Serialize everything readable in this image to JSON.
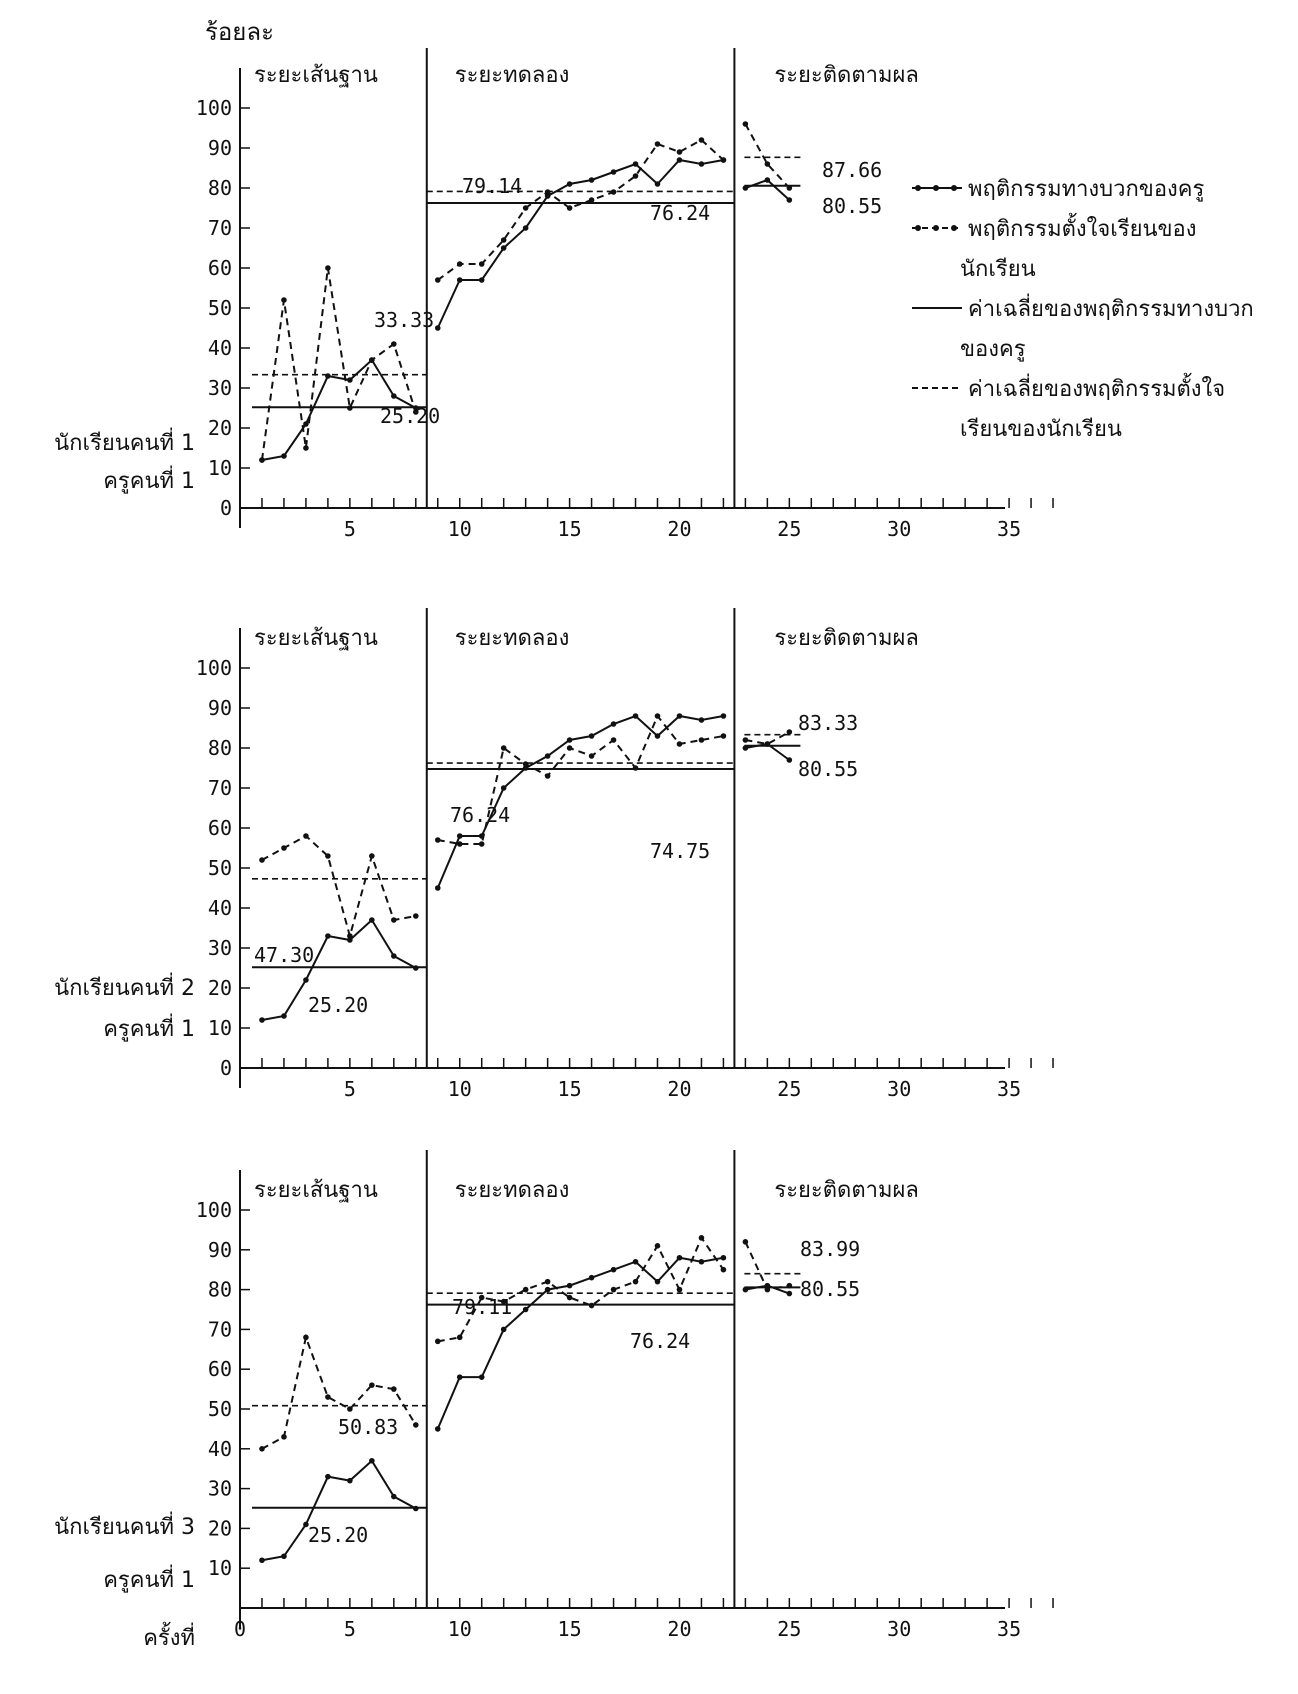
{
  "y_unit_label": "ร้อยละ",
  "chart_data": [
    {
      "type": "line",
      "row_labels": [
        "นักเรียนคนที่ 1",
        "ครูคนที่ 1"
      ],
      "phases": [
        "ระยะเส้นฐาน",
        "ระยะทดลอง",
        "ระยะติดตามผล"
      ],
      "phase_breaks": [
        8.5,
        22.5
      ],
      "xlim": [
        0,
        38
      ],
      "ylim": [
        0,
        100
      ],
      "x_ticks": [
        5,
        10,
        15,
        20,
        25,
        30,
        35
      ],
      "x_tick_labels": [
        "5",
        "10",
        "15",
        "20",
        "25",
        "30",
        "35"
      ],
      "y_ticks": [
        0,
        10,
        20,
        30,
        40,
        50,
        60,
        70,
        80,
        90,
        100
      ],
      "y_tick_labels": [
        "0",
        "10",
        "20",
        "30",
        "40",
        "50",
        "60",
        "70",
        "80",
        "90",
        "100"
      ],
      "series": [
        {
          "name": "พฤติกรรมทางบวกของครู",
          "style": "solid",
          "x": [
            1,
            2,
            3,
            4,
            5,
            6,
            7,
            8,
            9,
            10,
            11,
            12,
            13,
            14,
            15,
            16,
            17,
            18,
            19,
            20,
            21,
            22,
            23,
            24,
            25
          ],
          "y": [
            12,
            13,
            21,
            33,
            32,
            37,
            28,
            25,
            45,
            57,
            57,
            65,
            70,
            78,
            81,
            82,
            84,
            86,
            81,
            87,
            86,
            87,
            80,
            82,
            77
          ]
        },
        {
          "name": "พฤติกรรมตั้งใจเรียนของนักเรียน",
          "style": "dashed",
          "x": [
            1,
            2,
            3,
            4,
            5,
            6,
            7,
            8,
            9,
            10,
            11,
            12,
            13,
            14,
            15,
            16,
            17,
            18,
            19,
            20,
            21,
            22,
            23,
            24,
            25
          ],
          "y": [
            12,
            52,
            15,
            60,
            25,
            37,
            41,
            24,
            57,
            61,
            61,
            67,
            75,
            79,
            75,
            77,
            79,
            83,
            91,
            89,
            92,
            87,
            96,
            86,
            80
          ]
        }
      ],
      "phase_means": [
        {
          "series": "teacher",
          "phase": 0,
          "value": 25.2,
          "label": "25.20"
        },
        {
          "series": "student",
          "phase": 0,
          "value": 33.33,
          "label": "33.33"
        },
        {
          "series": "teacher",
          "phase": 1,
          "value": 76.24,
          "label": "76.24"
        },
        {
          "series": "student",
          "phase": 1,
          "value": 79.14,
          "label": "79.14"
        },
        {
          "series": "teacher",
          "phase": 2,
          "value": 80.55,
          "label": "80.55"
        },
        {
          "series": "student",
          "phase": 2,
          "value": 87.66,
          "label": "87.66"
        }
      ]
    },
    {
      "type": "line",
      "row_labels": [
        "นักเรียนคนที่ 2",
        "ครูคนที่ 1"
      ],
      "phases": [
        "ระยะเส้นฐาน",
        "ระยะทดลอง",
        "ระยะติดตามผล"
      ],
      "phase_breaks": [
        8.5,
        22.5
      ],
      "xlim": [
        0,
        38
      ],
      "ylim": [
        0,
        100
      ],
      "x_ticks": [
        5,
        10,
        15,
        20,
        25,
        30,
        35
      ],
      "x_tick_labels": [
        "5",
        "10",
        "15",
        "20",
        "25",
        "30",
        "35"
      ],
      "y_ticks": [
        0,
        10,
        20,
        30,
        40,
        50,
        60,
        70,
        80,
        90,
        100
      ],
      "y_tick_labels": [
        "0",
        "10",
        "20",
        "30",
        "40",
        "50",
        "60",
        "70",
        "80",
        "90",
        "100"
      ],
      "series": [
        {
          "name": "พฤติกรรมทางบวกของครู",
          "style": "solid",
          "x": [
            1,
            2,
            3,
            4,
            5,
            6,
            7,
            8,
            9,
            10,
            11,
            12,
            13,
            14,
            15,
            16,
            17,
            18,
            19,
            20,
            21,
            22,
            23,
            24,
            25
          ],
          "y": [
            12,
            13,
            22,
            33,
            32,
            37,
            28,
            25,
            45,
            58,
            58,
            70,
            75,
            78,
            82,
            83,
            86,
            88,
            83,
            88,
            87,
            88,
            80,
            81,
            77
          ]
        },
        {
          "name": "พฤติกรรมตั้งใจเรียนของนักเรียน",
          "style": "dashed",
          "x": [
            1,
            2,
            3,
            4,
            5,
            6,
            7,
            8,
            9,
            10,
            11,
            12,
            13,
            14,
            15,
            16,
            17,
            18,
            19,
            20,
            21,
            22,
            23,
            24,
            25
          ],
          "y": [
            52,
            55,
            58,
            53,
            33,
            53,
            37,
            38,
            57,
            56,
            56,
            80,
            76,
            73,
            80,
            78,
            82,
            75,
            88,
            81,
            82,
            83,
            82,
            81,
            84
          ]
        }
      ],
      "phase_means": [
        {
          "series": "teacher",
          "phase": 0,
          "value": 25.2,
          "label": "25.20"
        },
        {
          "series": "student",
          "phase": 0,
          "value": 47.3,
          "label": "47.30"
        },
        {
          "series": "teacher",
          "phase": 1,
          "value": 74.75,
          "label": "74.75"
        },
        {
          "series": "student",
          "phase": 1,
          "value": 76.24,
          "label": "76.24"
        },
        {
          "series": "teacher",
          "phase": 2,
          "value": 80.55,
          "label": "80.55"
        },
        {
          "series": "student",
          "phase": 2,
          "value": 83.33,
          "label": "83.33"
        }
      ]
    },
    {
      "type": "line",
      "row_labels": [
        "นักเรียนคนที่ 3",
        "ครูคนที่ 1",
        "ครั้งที่"
      ],
      "phases": [
        "ระยะเส้นฐาน",
        "ระยะทดลอง",
        "ระยะติดตามผล"
      ],
      "phase_breaks": [
        8.5,
        22.5
      ],
      "xlim": [
        0,
        38
      ],
      "ylim": [
        0,
        100
      ],
      "x_ticks": [
        0,
        5,
        10,
        15,
        20,
        25,
        30,
        35
      ],
      "x_tick_labels": [
        "0",
        "5",
        "10",
        "15",
        "20",
        "25",
        "30",
        "35"
      ],
      "y_ticks": [
        10,
        20,
        30,
        40,
        50,
        60,
        70,
        80,
        90,
        100
      ],
      "y_tick_labels": [
        "10",
        "20",
        "30",
        "40",
        "50",
        "60",
        "70",
        "80",
        "90",
        "100"
      ],
      "series": [
        {
          "name": "พฤติกรรมทางบวกของครู",
          "style": "solid",
          "x": [
            1,
            2,
            3,
            4,
            5,
            6,
            7,
            8,
            9,
            10,
            11,
            12,
            13,
            14,
            15,
            16,
            17,
            18,
            19,
            20,
            21,
            22,
            23,
            24,
            25
          ],
          "y": [
            12,
            13,
            21,
            33,
            32,
            37,
            28,
            25,
            45,
            58,
            58,
            70,
            75,
            80,
            81,
            83,
            85,
            87,
            82,
            88,
            87,
            88,
            80,
            81,
            79
          ]
        },
        {
          "name": "พฤติกรรมตั้งใจเรียนของนักเรียน",
          "style": "dashed",
          "x": [
            1,
            2,
            3,
            4,
            5,
            6,
            7,
            8,
            9,
            10,
            11,
            12,
            13,
            14,
            15,
            16,
            17,
            18,
            19,
            20,
            21,
            22,
            23,
            24,
            25
          ],
          "y": [
            40,
            43,
            68,
            53,
            50,
            56,
            55,
            46,
            67,
            68,
            78,
            77,
            80,
            82,
            78,
            76,
            80,
            82,
            91,
            80,
            93,
            85,
            92,
            80,
            81
          ]
        }
      ],
      "phase_means": [
        {
          "series": "teacher",
          "phase": 0,
          "value": 25.2,
          "label": "25.20"
        },
        {
          "series": "student",
          "phase": 0,
          "value": 50.83,
          "label": "50.83"
        },
        {
          "series": "teacher",
          "phase": 1,
          "value": 76.24,
          "label": "76.24"
        },
        {
          "series": "student",
          "phase": 1,
          "value": 79.11,
          "label": "79.11"
        },
        {
          "series": "teacher",
          "phase": 2,
          "value": 80.55,
          "label": "80.55"
        },
        {
          "series": "student",
          "phase": 2,
          "value": 83.99,
          "label": "83.99"
        }
      ]
    }
  ],
  "legend": {
    "items": [
      {
        "text": "พฤติกรรมทางบวกของครู",
        "style": "solid-dots"
      },
      {
        "text": "พฤติกรรมตั้งใจเรียนของ",
        "style": "dashed-dots"
      },
      {
        "text": "นักเรียน",
        "style": "none"
      },
      {
        "text": "ค่าเฉลี่ยของพฤติกรรมทางบวก",
        "style": "solid"
      },
      {
        "text": "ของครู",
        "style": "none"
      },
      {
        "text": "ค่าเฉลี่ยของพฤติกรรมตั้งใจ",
        "style": "dashed"
      },
      {
        "text": "เรียนของนักเรียน",
        "style": "none"
      }
    ]
  }
}
